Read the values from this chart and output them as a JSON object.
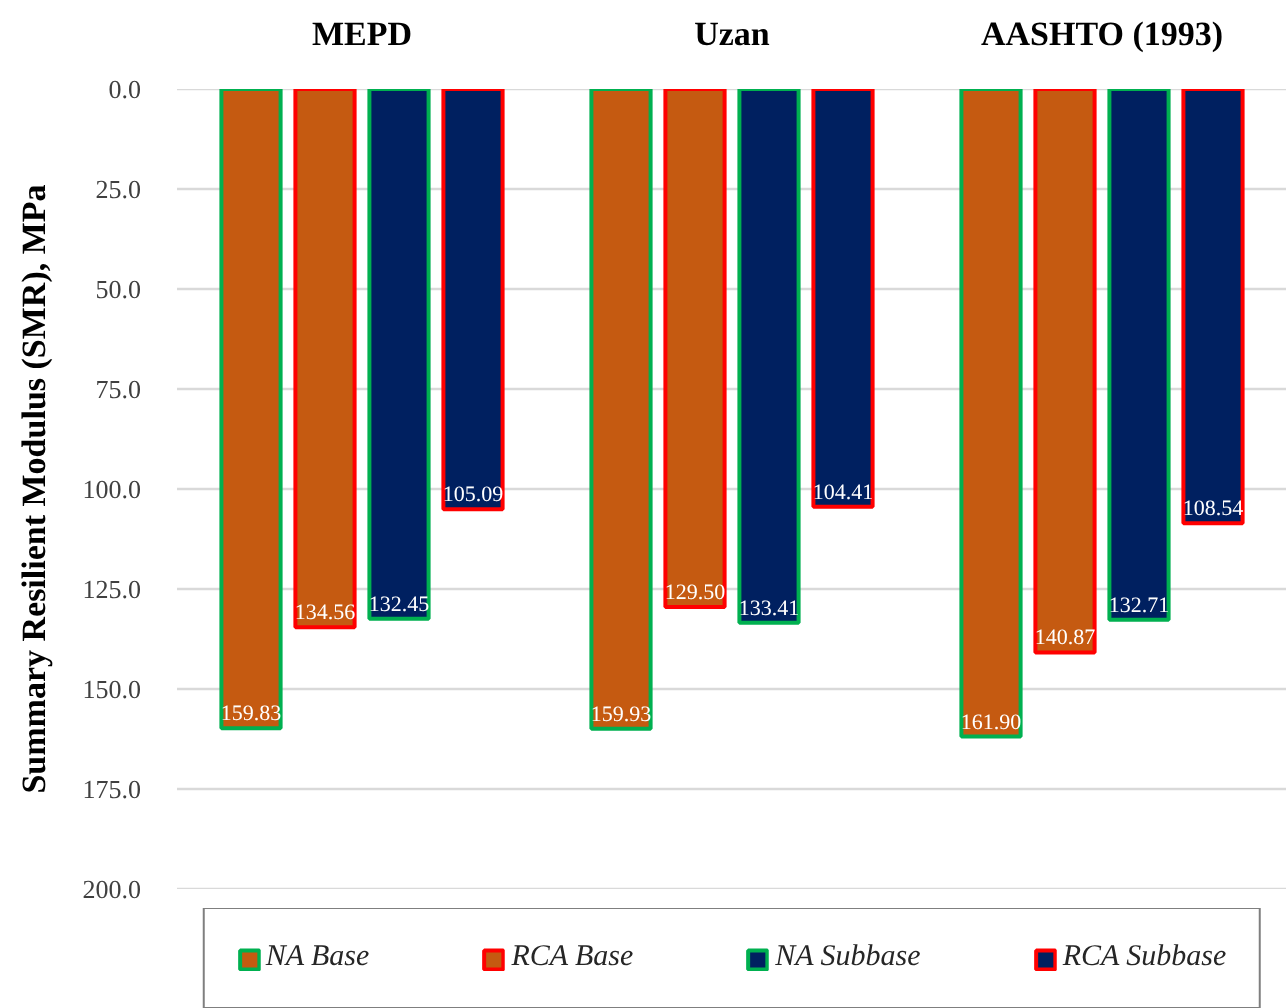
{
  "chart_data": {
    "type": "bar",
    "ylabel": "Summary Resilient Modulus (SMR), MPa",
    "categories": [
      "MEPD",
      "Uzan",
      "AASHTO (1993)"
    ],
    "series": [
      {
        "name": "NA Base",
        "color": "#c55a11",
        "values": [
          159.83,
          159.93,
          161.9
        ],
        "value_labels": [
          "159.83",
          "159.93",
          "161.90"
        ]
      },
      {
        "name": "RCA Base",
        "color": "#c55a11",
        "values": [
          134.56,
          129.5,
          140.87
        ],
        "value_labels": [
          "134.56",
          "129.50",
          "140.87"
        ]
      },
      {
        "name": "NA Subbase",
        "color": "#002060",
        "values": [
          132.45,
          133.41,
          132.71
        ],
        "value_labels": [
          "132.45",
          "133.41",
          "132.71"
        ]
      },
      {
        "name": "RCA Subbase",
        "color": "#002060",
        "values": [
          105.09,
          104.41,
          108.54
        ],
        "value_labels": [
          "105.09",
          "104.41",
          "108.54"
        ]
      }
    ],
    "ylim": [
      200,
      0
    ],
    "yticks": [
      {
        "value": 0,
        "label": "0.0"
      },
      {
        "value": 25,
        "label": "25.0"
      },
      {
        "value": 50,
        "label": "50.0"
      },
      {
        "value": 75,
        "label": "75.0"
      },
      {
        "value": 100,
        "label": "100.0"
      },
      {
        "value": 125,
        "label": "125.0"
      },
      {
        "value": 150,
        "label": "150.0"
      },
      {
        "value": 175,
        "label": "175.0"
      },
      {
        "value": 200,
        "label": "200.0"
      }
    ],
    "grid": "y",
    "legend": "bottom"
  }
}
